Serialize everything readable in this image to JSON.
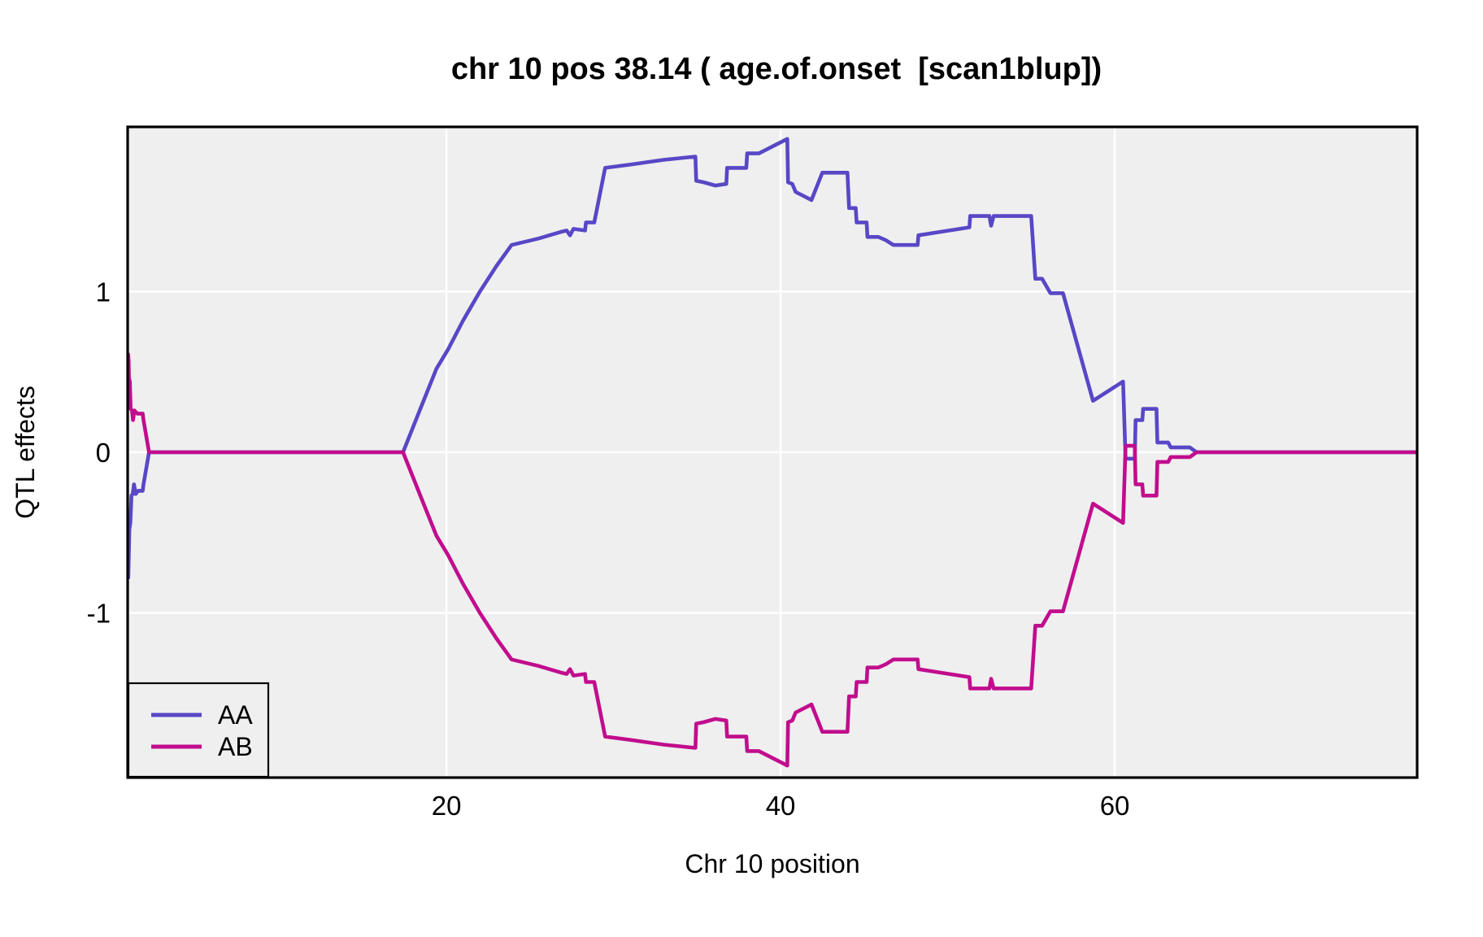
{
  "title": "chr 10 pos 38.14 ( age.of.onset  [scan1blup])",
  "chart_data": {
    "type": "line",
    "title": "chr 10 pos 38.14 ( age.of.onset  [scan1blup])",
    "xlabel": "Chr 10 position",
    "ylabel": "QTL effects",
    "xlim": [
      0.92,
      78.1
    ],
    "ylim": [
      -2.025,
      2.025
    ],
    "xticks": [
      20,
      40,
      60
    ],
    "yticks": [
      -1,
      0,
      1
    ],
    "grid": true,
    "panel_bg": "#EFEFEF",
    "grid_color": "#FFFFFF",
    "border_color": "#000000",
    "legend": {
      "position": "bottom-left",
      "entries": [
        {
          "label": "AA",
          "color": "#5847C6"
        },
        {
          "label": "AB",
          "color": "#C10D8D"
        }
      ]
    },
    "series": [
      {
        "name": "AA",
        "color": "#5847C6",
        "points": [
          [
            0.92,
            -0.55
          ],
          [
            0.95,
            -0.62
          ],
          [
            0.96,
            -0.78
          ],
          [
            1.0,
            -0.6
          ],
          [
            1.02,
            -0.48
          ],
          [
            1.08,
            -0.44
          ],
          [
            1.15,
            -0.27
          ],
          [
            1.22,
            -0.26
          ],
          [
            1.3,
            -0.2
          ],
          [
            1.4,
            -0.26
          ],
          [
            1.55,
            -0.24
          ],
          [
            1.82,
            -0.24
          ],
          [
            1.87,
            -0.2
          ],
          [
            2.2,
            0
          ],
          [
            17.4,
            0
          ],
          [
            18.4,
            0.26
          ],
          [
            19.4,
            0.52
          ],
          [
            20.1,
            0.64
          ],
          [
            21.0,
            0.82
          ],
          [
            22.0,
            1.0
          ],
          [
            23.0,
            1.16
          ],
          [
            23.9,
            1.29
          ],
          [
            25.5,
            1.33
          ],
          [
            26.8,
            1.37
          ],
          [
            27.2,
            1.38
          ],
          [
            27.4,
            1.35
          ],
          [
            27.6,
            1.39
          ],
          [
            28.3,
            1.38
          ],
          [
            28.35,
            1.43
          ],
          [
            28.85,
            1.43
          ],
          [
            29.5,
            1.77
          ],
          [
            31.0,
            1.79
          ],
          [
            33.0,
            1.82
          ],
          [
            34.9,
            1.84
          ],
          [
            34.95,
            1.69
          ],
          [
            35.4,
            1.68
          ],
          [
            36.1,
            1.66
          ],
          [
            36.75,
            1.67
          ],
          [
            36.8,
            1.77
          ],
          [
            37.95,
            1.77
          ],
          [
            38.0,
            1.86
          ],
          [
            38.7,
            1.86
          ],
          [
            40.4,
            1.95
          ],
          [
            40.45,
            1.68
          ],
          [
            40.7,
            1.67
          ],
          [
            40.9,
            1.62
          ],
          [
            41.85,
            1.57
          ],
          [
            42.5,
            1.74
          ],
          [
            44.0,
            1.74
          ],
          [
            44.1,
            1.52
          ],
          [
            44.5,
            1.52
          ],
          [
            44.55,
            1.43
          ],
          [
            45.15,
            1.43
          ],
          [
            45.2,
            1.34
          ],
          [
            45.85,
            1.34
          ],
          [
            46.3,
            1.32
          ],
          [
            46.75,
            1.29
          ],
          [
            48.2,
            1.29
          ],
          [
            48.25,
            1.35
          ],
          [
            51.3,
            1.4
          ],
          [
            51.35,
            1.47
          ],
          [
            52.5,
            1.47
          ],
          [
            52.6,
            1.41
          ],
          [
            52.75,
            1.47
          ],
          [
            55.0,
            1.47
          ],
          [
            55.25,
            1.08
          ],
          [
            55.65,
            1.08
          ],
          [
            56.15,
            0.99
          ],
          [
            56.9,
            0.99
          ],
          [
            58.7,
            0.32
          ],
          [
            60.5,
            0.44
          ],
          [
            60.65,
            -0.04
          ],
          [
            61.2,
            -0.04
          ],
          [
            61.25,
            0.2
          ],
          [
            61.65,
            0.2
          ],
          [
            61.7,
            0.27
          ],
          [
            62.5,
            0.27
          ],
          [
            62.55,
            0.06
          ],
          [
            63.2,
            0.06
          ],
          [
            63.35,
            0.03
          ],
          [
            64.5,
            0.03
          ],
          [
            64.9,
            0
          ],
          [
            78.1,
            0
          ]
        ]
      },
      {
        "name": "AB",
        "color": "#C10D8D",
        "points": [
          [
            0.92,
            0.55
          ],
          [
            0.95,
            0.61
          ],
          [
            0.98,
            0.57
          ],
          [
            1.0,
            0.46
          ],
          [
            1.05,
            0.44
          ],
          [
            1.1,
            0.27
          ],
          [
            1.18,
            0.26
          ],
          [
            1.24,
            0.2
          ],
          [
            1.32,
            0.26
          ],
          [
            1.5,
            0.24
          ],
          [
            1.82,
            0.24
          ],
          [
            1.87,
            0.2
          ],
          [
            2.2,
            0
          ],
          [
            17.4,
            0
          ],
          [
            18.4,
            -0.26
          ],
          [
            19.4,
            -0.52
          ],
          [
            20.1,
            -0.64
          ],
          [
            21.0,
            -0.82
          ],
          [
            22.0,
            -1.0
          ],
          [
            23.0,
            -1.16
          ],
          [
            23.9,
            -1.29
          ],
          [
            25.5,
            -1.33
          ],
          [
            26.8,
            -1.37
          ],
          [
            27.2,
            -1.38
          ],
          [
            27.4,
            -1.35
          ],
          [
            27.6,
            -1.39
          ],
          [
            28.3,
            -1.38
          ],
          [
            28.35,
            -1.43
          ],
          [
            28.85,
            -1.43
          ],
          [
            29.5,
            -1.77
          ],
          [
            31.0,
            -1.79
          ],
          [
            33.0,
            -1.82
          ],
          [
            34.9,
            -1.84
          ],
          [
            34.95,
            -1.69
          ],
          [
            35.4,
            -1.68
          ],
          [
            36.1,
            -1.66
          ],
          [
            36.75,
            -1.67
          ],
          [
            36.8,
            -1.77
          ],
          [
            37.95,
            -1.77
          ],
          [
            38.0,
            -1.86
          ],
          [
            38.7,
            -1.86
          ],
          [
            40.4,
            -1.95
          ],
          [
            40.45,
            -1.68
          ],
          [
            40.7,
            -1.67
          ],
          [
            40.9,
            -1.62
          ],
          [
            41.85,
            -1.57
          ],
          [
            42.5,
            -1.74
          ],
          [
            44.0,
            -1.74
          ],
          [
            44.1,
            -1.52
          ],
          [
            44.5,
            -1.52
          ],
          [
            44.55,
            -1.43
          ],
          [
            45.15,
            -1.43
          ],
          [
            45.2,
            -1.34
          ],
          [
            45.85,
            -1.34
          ],
          [
            46.3,
            -1.32
          ],
          [
            46.75,
            -1.29
          ],
          [
            48.2,
            -1.29
          ],
          [
            48.25,
            -1.35
          ],
          [
            51.3,
            -1.4
          ],
          [
            51.35,
            -1.47
          ],
          [
            52.5,
            -1.47
          ],
          [
            52.6,
            -1.41
          ],
          [
            52.75,
            -1.47
          ],
          [
            55.0,
            -1.47
          ],
          [
            55.25,
            -1.08
          ],
          [
            55.65,
            -1.08
          ],
          [
            56.15,
            -0.99
          ],
          [
            56.9,
            -0.99
          ],
          [
            58.7,
            -0.32
          ],
          [
            60.5,
            -0.44
          ],
          [
            60.65,
            0.04
          ],
          [
            61.2,
            0.04
          ],
          [
            61.25,
            -0.2
          ],
          [
            61.65,
            -0.2
          ],
          [
            61.7,
            -0.27
          ],
          [
            62.5,
            -0.27
          ],
          [
            62.55,
            -0.06
          ],
          [
            63.2,
            -0.06
          ],
          [
            63.35,
            -0.03
          ],
          [
            64.5,
            -0.03
          ],
          [
            64.9,
            0
          ],
          [
            78.1,
            0
          ]
        ]
      }
    ]
  }
}
